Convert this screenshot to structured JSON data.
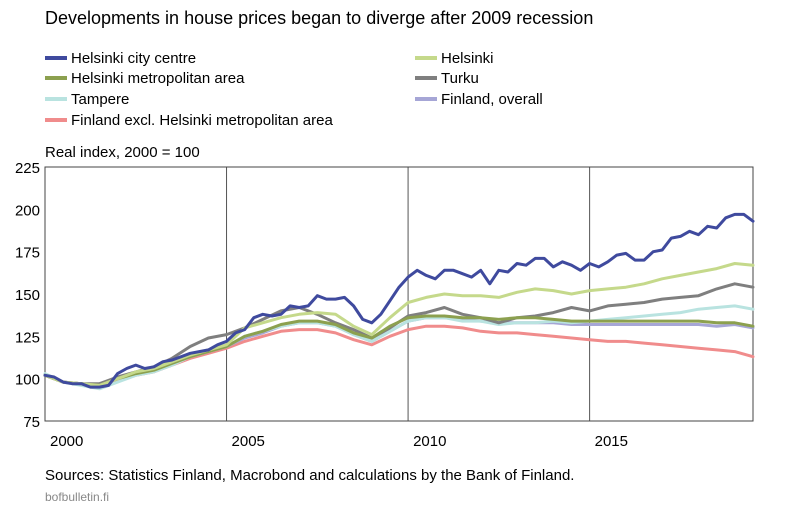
{
  "title": "Developments in house prices began to diverge after 2009 recession",
  "unit_label": "Real index, 2000 = 100",
  "source": "Sources: Statistics Finland, Macrobond and calculations by the Bank of Finland.",
  "site": "bofbulletin.fi",
  "chart_data": {
    "type": "line",
    "ylim": [
      75,
      225
    ],
    "xlim": [
      2000,
      2019.5
    ],
    "yticks": [
      "75",
      "100",
      "125",
      "150",
      "175",
      "200",
      "225"
    ],
    "xticks": [
      "2000",
      "2005",
      "2010",
      "2015"
    ],
    "legend_placement": "top",
    "gridlines": "vertical at 2005, 2010, 2015",
    "series": [
      {
        "name": "Helsinki city centre",
        "color": "#3f4a9e",
        "x": [
          2000,
          2000.25,
          2000.5,
          2000.75,
          2001,
          2001.25,
          2001.5,
          2001.75,
          2002,
          2002.25,
          2002.5,
          2002.75,
          2003,
          2003.25,
          2003.5,
          2003.75,
          2004,
          2004.25,
          2004.5,
          2004.75,
          2005,
          2005.25,
          2005.5,
          2005.75,
          2006,
          2006.25,
          2006.5,
          2006.75,
          2007,
          2007.25,
          2007.5,
          2007.75,
          2008,
          2008.25,
          2008.5,
          2008.75,
          2009,
          2009.25,
          2009.5,
          2009.75,
          2010,
          2010.25,
          2010.5,
          2010.75,
          2011,
          2011.25,
          2011.5,
          2011.75,
          2012,
          2012.25,
          2012.5,
          2012.75,
          2013,
          2013.25,
          2013.5,
          2013.75,
          2014,
          2014.25,
          2014.5,
          2014.75,
          2015,
          2015.25,
          2015.5,
          2015.75,
          2016,
          2016.25,
          2016.5,
          2016.75,
          2017,
          2017.25,
          2017.5,
          2017.75,
          2018,
          2018.25,
          2018.5,
          2018.75,
          2019,
          2019.25,
          2019.5
        ],
        "values": [
          102,
          101,
          98,
          97,
          97,
          95,
          95,
          96,
          103,
          106,
          108,
          106,
          107,
          110,
          111,
          113,
          115,
          116,
          117,
          120,
          122,
          127,
          129,
          136,
          138,
          137,
          138,
          143,
          142,
          143,
          149,
          147,
          147,
          148,
          143,
          135,
          133,
          138,
          146,
          154,
          160,
          164,
          161,
          159,
          164,
          164,
          162,
          160,
          164,
          156,
          164,
          163,
          168,
          167,
          171,
          171,
          166,
          169,
          167,
          164,
          168,
          166,
          169,
          173,
          174,
          170,
          170,
          175,
          176,
          183,
          184,
          187,
          185,
          190,
          189,
          195,
          197,
          197,
          193
        ]
      },
      {
        "name": "Helsinki",
        "color": "#c5d98b",
        "x": [
          2000,
          2000.5,
          2001,
          2001.5,
          2002,
          2002.5,
          2003,
          2003.5,
          2004,
          2004.5,
          2005,
          2005.5,
          2006,
          2006.5,
          2007,
          2007.5,
          2008,
          2008.5,
          2009,
          2009.5,
          2010,
          2010.5,
          2011,
          2011.5,
          2012,
          2012.5,
          2013,
          2013.5,
          2014,
          2014.5,
          2015,
          2015.5,
          2016,
          2016.5,
          2017,
          2017.5,
          2018,
          2018.5,
          2019,
          2019.5
        ],
        "values": [
          102,
          98,
          97,
          96,
          100,
          104,
          106,
          110,
          114,
          117,
          120,
          130,
          133,
          136,
          138,
          139,
          138,
          131,
          126,
          136,
          145,
          148,
          150,
          149,
          149,
          148,
          151,
          153,
          152,
          150,
          152,
          153,
          154,
          156,
          159,
          161,
          163,
          165,
          168,
          167
        ]
      },
      {
        "name": "Helsinki metropolitan area",
        "color": "#8ca04f",
        "x": [
          2000,
          2000.5,
          2001,
          2001.5,
          2002,
          2002.5,
          2003,
          2003.5,
          2004,
          2004.5,
          2005,
          2005.5,
          2006,
          2006.5,
          2007,
          2007.5,
          2008,
          2008.5,
          2009,
          2009.5,
          2010,
          2010.5,
          2011,
          2011.5,
          2012,
          2012.5,
          2013,
          2013.5,
          2014,
          2014.5,
          2015,
          2015.5,
          2016,
          2016.5,
          2017,
          2017.5,
          2018,
          2018.5,
          2019,
          2019.5
        ],
        "values": [
          102,
          98,
          97,
          96,
          100,
          103,
          105,
          109,
          113,
          116,
          119,
          125,
          128,
          132,
          134,
          134,
          132,
          127,
          124,
          131,
          136,
          137,
          137,
          136,
          136,
          135,
          136,
          136,
          135,
          134,
          134,
          134,
          134,
          134,
          134,
          134,
          134,
          133,
          133,
          131
        ]
      },
      {
        "name": "Turku",
        "color": "#7f7f7f",
        "x": [
          2000,
          2000.5,
          2001,
          2001.5,
          2002,
          2002.5,
          2003,
          2003.5,
          2004,
          2004.5,
          2005,
          2005.5,
          2006,
          2006.5,
          2007,
          2007.5,
          2008,
          2008.5,
          2009,
          2009.5,
          2010,
          2010.5,
          2011,
          2011.5,
          2012,
          2012.5,
          2013,
          2013.5,
          2014,
          2014.5,
          2015,
          2015.5,
          2016,
          2016.5,
          2017,
          2017.5,
          2018,
          2018.5,
          2019,
          2019.5
        ],
        "values": [
          102,
          98,
          97,
          97,
          101,
          104,
          107,
          112,
          119,
          124,
          126,
          130,
          135,
          140,
          142,
          138,
          133,
          129,
          124,
          130,
          137,
          139,
          142,
          138,
          136,
          133,
          136,
          137,
          139,
          142,
          140,
          143,
          144,
          145,
          147,
          148,
          149,
          153,
          156,
          154
        ]
      },
      {
        "name": "Tampere",
        "color": "#b9e3e0",
        "x": [
          2000,
          2000.5,
          2001,
          2001.5,
          2002,
          2002.5,
          2003,
          2003.5,
          2004,
          2004.5,
          2005,
          2005.5,
          2006,
          2006.5,
          2007,
          2007.5,
          2008,
          2008.5,
          2009,
          2009.5,
          2010,
          2010.5,
          2011,
          2011.5,
          2012,
          2012.5,
          2013,
          2013.5,
          2014,
          2014.5,
          2015,
          2015.5,
          2016,
          2016.5,
          2017,
          2017.5,
          2018,
          2018.5,
          2019,
          2019.5
        ],
        "values": [
          103,
          98,
          96,
          94,
          98,
          102,
          104,
          108,
          113,
          116,
          119,
          125,
          128,
          131,
          133,
          133,
          131,
          126,
          122,
          128,
          134,
          136,
          136,
          134,
          134,
          132,
          133,
          133,
          134,
          133,
          134,
          135,
          136,
          137,
          138,
          139,
          141,
          142,
          143,
          141
        ]
      },
      {
        "name": "Finland, overall",
        "color": "#a6a6d6",
        "x": [
          2000,
          2000.5,
          2001,
          2001.5,
          2002,
          2002.5,
          2003,
          2003.5,
          2004,
          2004.5,
          2005,
          2005.5,
          2006,
          2006.5,
          2007,
          2007.5,
          2008,
          2008.5,
          2009,
          2009.5,
          2010,
          2010.5,
          2011,
          2011.5,
          2012,
          2012.5,
          2013,
          2013.5,
          2014,
          2014.5,
          2015,
          2015.5,
          2016,
          2016.5,
          2017,
          2017.5,
          2018,
          2018.5,
          2019,
          2019.5
        ],
        "values": [
          102,
          98,
          97,
          96,
          100,
          103,
          105,
          109,
          113,
          116,
          119,
          124,
          127,
          131,
          133,
          133,
          131,
          126,
          122,
          128,
          134,
          136,
          136,
          135,
          134,
          133,
          133,
          133,
          133,
          132,
          132,
          132,
          132,
          132,
          132,
          132,
          132,
          131,
          132,
          130
        ]
      },
      {
        "name": "Finland excl. Helsinki metropolitan area",
        "color": "#f08c8c",
        "x": [
          2000,
          2000.5,
          2001,
          2001.5,
          2002,
          2002.5,
          2003,
          2003.5,
          2004,
          2004.5,
          2005,
          2005.5,
          2006,
          2006.5,
          2007,
          2007.5,
          2008,
          2008.5,
          2009,
          2009.5,
          2010,
          2010.5,
          2011,
          2011.5,
          2012,
          2012.5,
          2013,
          2013.5,
          2014,
          2014.5,
          2015,
          2015.5,
          2016,
          2016.5,
          2017,
          2017.5,
          2018,
          2018.5,
          2019,
          2019.5
        ],
        "values": [
          102,
          98,
          97,
          96,
          99,
          102,
          104,
          108,
          112,
          115,
          118,
          122,
          125,
          128,
          129,
          129,
          127,
          123,
          120,
          125,
          129,
          131,
          131,
          130,
          128,
          127,
          127,
          126,
          125,
          124,
          123,
          122,
          122,
          121,
          120,
          119,
          118,
          117,
          116,
          113
        ]
      }
    ]
  }
}
